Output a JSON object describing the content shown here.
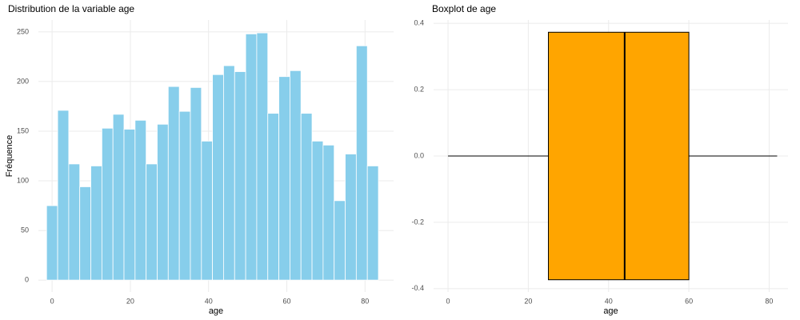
{
  "chart_data": [
    {
      "type": "histogram",
      "title": "Distribution de la variable age",
      "xlabel": "age",
      "ylabel": "Fréquence",
      "bins": [
        -1.41,
        1.42,
        4.25,
        7.07,
        9.9,
        12.73,
        15.56,
        18.38,
        21.21,
        24.04,
        26.87,
        29.69,
        32.52,
        35.35,
        38.18,
        41.0,
        43.83,
        46.66,
        49.49,
        52.31,
        55.14,
        57.97,
        60.8,
        63.62,
        66.45,
        69.28,
        72.11,
        74.93,
        77.76,
        80.59,
        83.42
      ],
      "values": [
        75,
        171,
        117,
        94,
        115,
        153,
        167,
        152,
        161,
        117,
        157,
        195,
        170,
        194,
        140,
        207,
        216,
        210,
        248,
        249,
        168,
        205,
        211,
        168,
        140,
        136,
        80,
        127,
        236,
        115
      ],
      "color": "#87ceeb",
      "xlim": [
        -3.5,
        87.3
      ],
      "xticks": [
        0,
        20,
        40,
        60,
        80
      ],
      "ylim": [
        -12,
        262
      ],
      "yticks": [
        0,
        50,
        100,
        150,
        200,
        250
      ],
      "grid": true
    },
    {
      "type": "box",
      "title": "Boxplot de age",
      "xlabel": "age",
      "stats": {
        "min": 0,
        "q1": 25,
        "median": 44,
        "q3": 60,
        "max": 82
      },
      "color": "#ffa500",
      "xlim": [
        -3.6,
        84.7
      ],
      "xticks": [
        0,
        20,
        40,
        60,
        80
      ],
      "ylim": [
        -0.41,
        0.41
      ],
      "yticks": [
        -0.4,
        -0.2,
        {
          "value": 0,
          "label": "0.0"
        },
        0.2,
        0.4
      ],
      "grid": true
    }
  ]
}
